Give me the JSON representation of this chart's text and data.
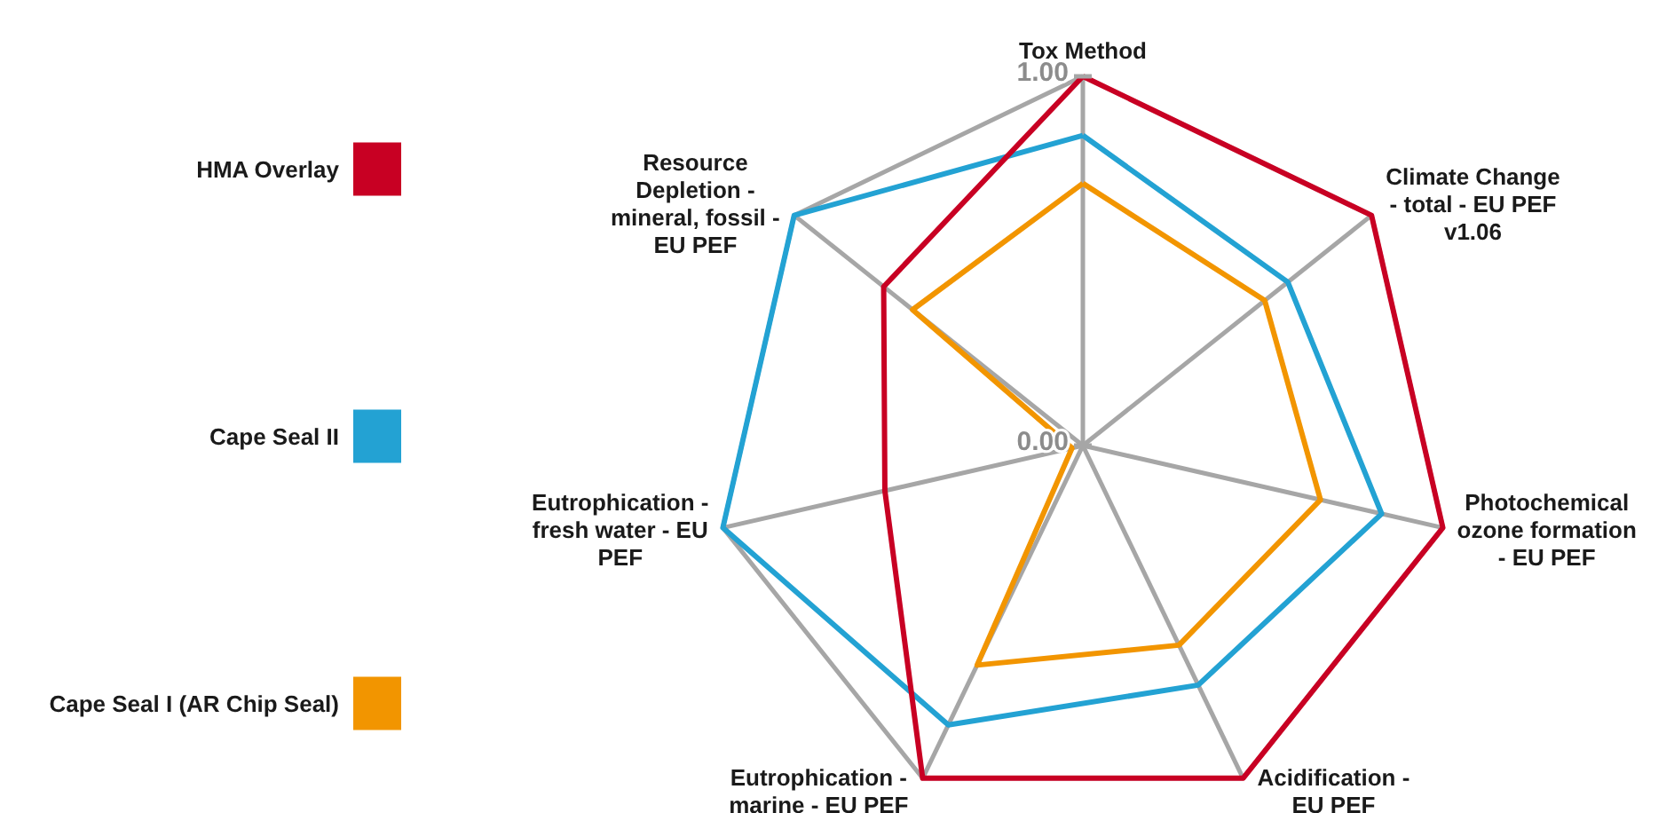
{
  "chart_data": {
    "type": "radar",
    "categories": [
      "Tox Method",
      "Climate Change - total - EU PEF v1.06",
      "Photochemical ozone formation - EU PEF",
      "Acidification - EU PEF",
      "Eutrophication - marine - EU PEF",
      "Eutrophication - fresh water - EU PEF",
      "Resource Depletion - mineral, fossil - EU PEF"
    ],
    "series": [
      {
        "name": "HMA Overlay",
        "color": "#c80023",
        "values": [
          1,
          1,
          1,
          1,
          1,
          0.55,
          0.69
        ]
      },
      {
        "name": "Cape Seal II",
        "color": "#23a2d3",
        "values": [
          0.84,
          0.71,
          0.83,
          0.72,
          0.84,
          1,
          1
        ]
      },
      {
        "name": "Cape Seal I (AR Chip Seal)",
        "color": "#f29500",
        "values": [
          0.71,
          0.63,
          0.66,
          0.6,
          0.66,
          0.03,
          0.59
        ]
      }
    ],
    "ylim": [
      0,
      1
    ],
    "yticks": [
      {
        "value": 0,
        "label": "0.00"
      },
      {
        "value": 1,
        "label": "1.00"
      }
    ],
    "grid": true,
    "legend": "left"
  }
}
